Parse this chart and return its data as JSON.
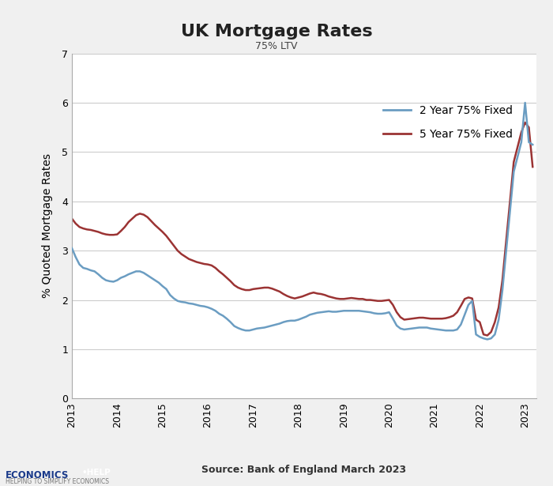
{
  "title": "UK Mortgage Rates",
  "subtitle": "75% LTV",
  "ylabel": "% Quoted Mortgage Rates",
  "source": "Source: Bank of England March 2023",
  "ylim": [
    0,
    7
  ],
  "yticks": [
    0,
    1,
    2,
    3,
    4,
    5,
    6,
    7
  ],
  "background_color": "#f0f0f0",
  "plot_bg_color": "#ffffff",
  "color_2yr": "#6b9dc2",
  "color_5yr": "#9b3333",
  "legend_2yr": "2 Year 75% Fixed",
  "legend_5yr": "5 Year 75% Fixed",
  "x_2yr": [
    2013.0,
    2013.083,
    2013.167,
    2013.25,
    2013.333,
    2013.417,
    2013.5,
    2013.583,
    2013.667,
    2013.75,
    2013.833,
    2013.917,
    2014.0,
    2014.083,
    2014.167,
    2014.25,
    2014.333,
    2014.417,
    2014.5,
    2014.583,
    2014.667,
    2014.75,
    2014.833,
    2014.917,
    2015.0,
    2015.083,
    2015.167,
    2015.25,
    2015.333,
    2015.417,
    2015.5,
    2015.583,
    2015.667,
    2015.75,
    2015.833,
    2015.917,
    2016.0,
    2016.083,
    2016.167,
    2016.25,
    2016.333,
    2016.417,
    2016.5,
    2016.583,
    2016.667,
    2016.75,
    2016.833,
    2016.917,
    2017.0,
    2017.083,
    2017.167,
    2017.25,
    2017.333,
    2017.417,
    2017.5,
    2017.583,
    2017.667,
    2017.75,
    2017.833,
    2017.917,
    2018.0,
    2018.083,
    2018.167,
    2018.25,
    2018.333,
    2018.417,
    2018.5,
    2018.583,
    2018.667,
    2018.75,
    2018.833,
    2018.917,
    2019.0,
    2019.083,
    2019.167,
    2019.25,
    2019.333,
    2019.417,
    2019.5,
    2019.583,
    2019.667,
    2019.75,
    2019.833,
    2019.917,
    2020.0,
    2020.083,
    2020.167,
    2020.25,
    2020.333,
    2020.417,
    2020.5,
    2020.583,
    2020.667,
    2020.75,
    2020.833,
    2020.917,
    2021.0,
    2021.083,
    2021.167,
    2021.25,
    2021.333,
    2021.417,
    2021.5,
    2021.583,
    2021.667,
    2021.75,
    2021.833,
    2021.917,
    2022.0,
    2022.083,
    2022.167,
    2022.25,
    2022.333,
    2022.417,
    2022.5,
    2022.583,
    2022.667,
    2022.75,
    2022.917,
    2023.0,
    2023.083,
    2023.167
  ],
  "y_2yr": [
    3.05,
    2.87,
    2.72,
    2.65,
    2.63,
    2.6,
    2.58,
    2.52,
    2.45,
    2.4,
    2.38,
    2.37,
    2.4,
    2.45,
    2.48,
    2.52,
    2.55,
    2.58,
    2.58,
    2.55,
    2.5,
    2.45,
    2.4,
    2.35,
    2.28,
    2.22,
    2.1,
    2.03,
    1.98,
    1.96,
    1.95,
    1.93,
    1.92,
    1.9,
    1.88,
    1.87,
    1.85,
    1.82,
    1.78,
    1.72,
    1.68,
    1.62,
    1.55,
    1.47,
    1.43,
    1.4,
    1.38,
    1.38,
    1.4,
    1.42,
    1.43,
    1.44,
    1.46,
    1.48,
    1.5,
    1.52,
    1.55,
    1.57,
    1.58,
    1.58,
    1.6,
    1.63,
    1.66,
    1.7,
    1.72,
    1.74,
    1.75,
    1.76,
    1.77,
    1.76,
    1.76,
    1.77,
    1.78,
    1.78,
    1.78,
    1.78,
    1.78,
    1.77,
    1.76,
    1.75,
    1.73,
    1.72,
    1.72,
    1.73,
    1.75,
    1.62,
    1.48,
    1.42,
    1.4,
    1.41,
    1.42,
    1.43,
    1.44,
    1.44,
    1.44,
    1.42,
    1.41,
    1.4,
    1.39,
    1.38,
    1.38,
    1.38,
    1.4,
    1.5,
    1.7,
    1.9,
    1.98,
    1.3,
    1.25,
    1.22,
    1.2,
    1.22,
    1.3,
    1.6,
    2.2,
    3.0,
    3.8,
    4.6,
    5.2,
    6.0,
    5.2,
    5.15
  ],
  "x_5yr": [
    2013.0,
    2013.083,
    2013.167,
    2013.25,
    2013.333,
    2013.417,
    2013.5,
    2013.583,
    2013.667,
    2013.75,
    2013.833,
    2013.917,
    2014.0,
    2014.083,
    2014.167,
    2014.25,
    2014.333,
    2014.417,
    2014.5,
    2014.583,
    2014.667,
    2014.75,
    2014.833,
    2014.917,
    2015.0,
    2015.083,
    2015.167,
    2015.25,
    2015.333,
    2015.417,
    2015.5,
    2015.583,
    2015.667,
    2015.75,
    2015.833,
    2015.917,
    2016.0,
    2016.083,
    2016.167,
    2016.25,
    2016.333,
    2016.417,
    2016.5,
    2016.583,
    2016.667,
    2016.75,
    2016.833,
    2016.917,
    2017.0,
    2017.083,
    2017.167,
    2017.25,
    2017.333,
    2017.417,
    2017.5,
    2017.583,
    2017.667,
    2017.75,
    2017.833,
    2017.917,
    2018.0,
    2018.083,
    2018.167,
    2018.25,
    2018.333,
    2018.417,
    2018.5,
    2018.583,
    2018.667,
    2018.75,
    2018.833,
    2018.917,
    2019.0,
    2019.083,
    2019.167,
    2019.25,
    2019.333,
    2019.417,
    2019.5,
    2019.583,
    2019.667,
    2019.75,
    2019.833,
    2019.917,
    2020.0,
    2020.083,
    2020.167,
    2020.25,
    2020.333,
    2020.417,
    2020.5,
    2020.583,
    2020.667,
    2020.75,
    2020.833,
    2020.917,
    2021.0,
    2021.083,
    2021.167,
    2021.25,
    2021.333,
    2021.417,
    2021.5,
    2021.583,
    2021.667,
    2021.75,
    2021.833,
    2021.917,
    2022.0,
    2022.083,
    2022.167,
    2022.25,
    2022.333,
    2022.417,
    2022.5,
    2022.583,
    2022.667,
    2022.75,
    2022.917,
    2023.0,
    2023.083,
    2023.167
  ],
  "y_5yr": [
    3.65,
    3.55,
    3.48,
    3.45,
    3.43,
    3.42,
    3.4,
    3.38,
    3.35,
    3.33,
    3.32,
    3.32,
    3.33,
    3.4,
    3.48,
    3.58,
    3.65,
    3.72,
    3.75,
    3.73,
    3.68,
    3.6,
    3.52,
    3.45,
    3.38,
    3.3,
    3.2,
    3.1,
    3.0,
    2.93,
    2.88,
    2.83,
    2.8,
    2.77,
    2.75,
    2.73,
    2.72,
    2.7,
    2.65,
    2.58,
    2.52,
    2.45,
    2.38,
    2.3,
    2.25,
    2.22,
    2.2,
    2.2,
    2.22,
    2.23,
    2.24,
    2.25,
    2.25,
    2.23,
    2.2,
    2.17,
    2.12,
    2.08,
    2.05,
    2.03,
    2.05,
    2.07,
    2.1,
    2.13,
    2.15,
    2.13,
    2.12,
    2.1,
    2.07,
    2.05,
    2.03,
    2.02,
    2.02,
    2.03,
    2.04,
    2.03,
    2.02,
    2.02,
    2.0,
    2.0,
    1.99,
    1.98,
    1.98,
    1.99,
    2.0,
    1.9,
    1.75,
    1.65,
    1.6,
    1.61,
    1.62,
    1.63,
    1.64,
    1.64,
    1.63,
    1.62,
    1.62,
    1.62,
    1.62,
    1.63,
    1.65,
    1.68,
    1.75,
    1.88,
    2.02,
    2.05,
    2.03,
    1.6,
    1.55,
    1.3,
    1.28,
    1.35,
    1.55,
    1.85,
    2.4,
    3.2,
    4.0,
    4.8,
    5.4,
    5.6,
    5.5,
    4.7
  ],
  "xticks": [
    2013,
    2013.5,
    2014,
    2014.5,
    2015,
    2015.5,
    2016,
    2016.5,
    2017,
    2017.5,
    2018,
    2018.5,
    2019,
    2019.5,
    2020,
    2020.5,
    2021,
    2021.5,
    2022,
    2022.5,
    2023
  ],
  "xtick_labels": [
    "2013",
    "",
    "2014",
    "",
    "2015",
    "",
    "2016",
    "",
    "2017",
    "",
    "2018",
    "",
    "2019",
    "",
    "2020",
    "",
    "2021",
    "",
    "2022",
    "",
    "2023"
  ]
}
